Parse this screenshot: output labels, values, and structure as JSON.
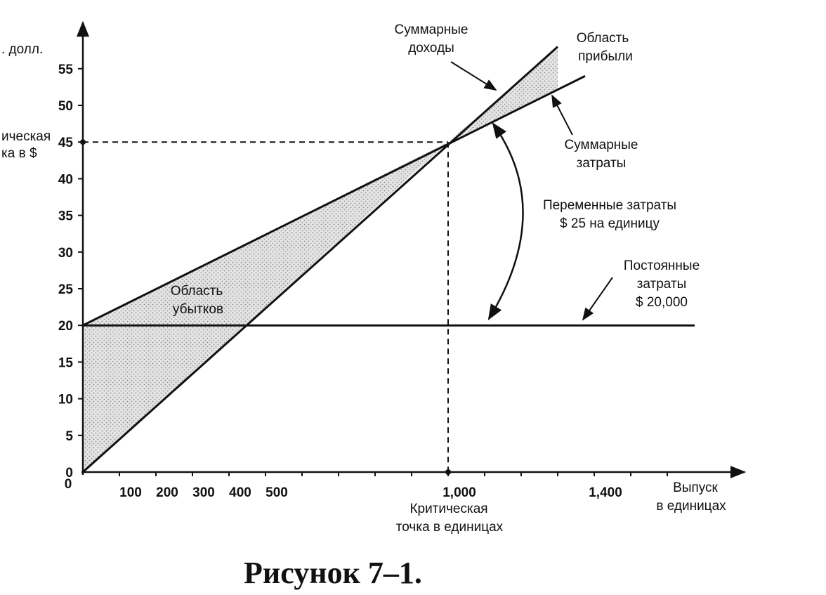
{
  "chart_data": {
    "type": "line",
    "title": "",
    "caption": "Рисунок 7–1.",
    "ylabel_line1": ". долл.",
    "ylabel_bep_line1": "ическая",
    "ylabel_bep_line2": "ка в $",
    "xlabel_line1": "Выпуск",
    "xlabel_line2": "в единицах",
    "xlim": [
      0,
      1400
    ],
    "ylim": [
      0,
      55
    ],
    "y_ticks": [
      0,
      5,
      10,
      15,
      20,
      25,
      30,
      35,
      40,
      45,
      50,
      55
    ],
    "x_tick_labels": [
      {
        "value": 100,
        "label": "100"
      },
      {
        "value": 200,
        "label": "200"
      },
      {
        "value": 300,
        "label": "300"
      },
      {
        "value": 400,
        "label": "400"
      },
      {
        "value": 500,
        "label": "500"
      },
      {
        "value": 1000,
        "label": "1,000"
      },
      {
        "value": 1400,
        "label": "1,400"
      }
    ],
    "x_minor_ticks": [
      100,
      200,
      300,
      400,
      500,
      600,
      700,
      800,
      900,
      1000,
      1100,
      1200,
      1300,
      1400,
      1500,
      1600
    ],
    "series": [
      {
        "key": "revenue",
        "points": [
          [
            0,
            0
          ],
          [
            1300,
            58
          ]
        ]
      },
      {
        "key": "total_cost",
        "points": [
          [
            0,
            20
          ],
          [
            1375,
            54
          ]
        ]
      },
      {
        "key": "fixed_cost",
        "points": [
          [
            0,
            20
          ],
          [
            1675,
            20
          ]
        ]
      }
    ],
    "break_even": {
      "x": 1000,
      "y": 45,
      "x_label_line1": "Критическая",
      "x_label_line2": "точка в единицах"
    },
    "annotations": {
      "revenue_line1": "Суммарные",
      "revenue_line2": "доходы",
      "profit_line1": "Область",
      "profit_line2": "прибыли",
      "total_cost_line1": "Суммарные",
      "total_cost_line2": "затраты",
      "variable_line1": "Переменные затраты",
      "variable_line2": "$ 25 на единицу",
      "fixed_line1": "Постоянные",
      "fixed_line2": "затраты",
      "fixed_line3": "$ 20,000",
      "loss_line1": "Область",
      "loss_line2": "убытков"
    }
  }
}
